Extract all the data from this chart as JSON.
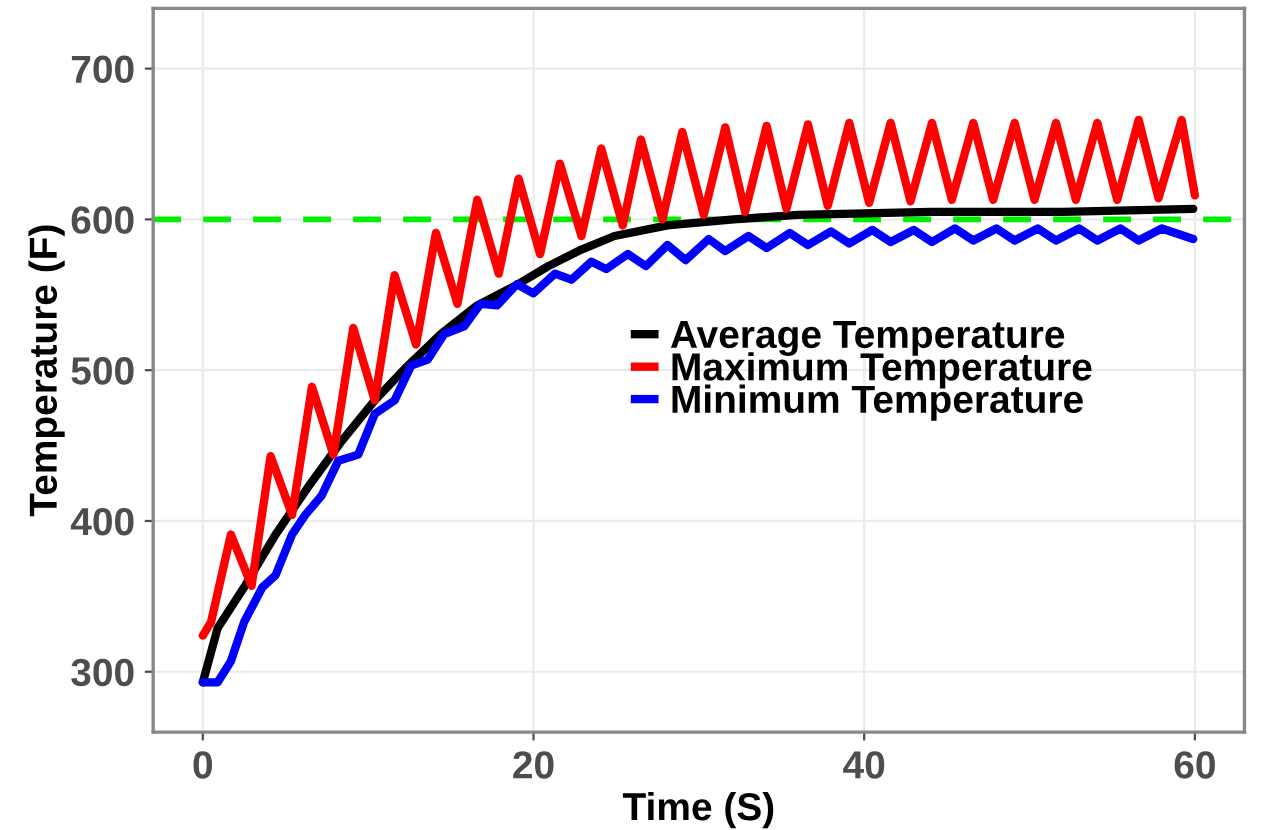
{
  "chart_data": {
    "type": "line",
    "xlabel": "Time (S)",
    "ylabel": "Temperature (F)",
    "xlim": [
      -3,
      63
    ],
    "ylim": [
      260,
      740
    ],
    "xticks": [
      0,
      20,
      40,
      60
    ],
    "yticks": [
      300,
      400,
      500,
      600,
      700
    ],
    "grid": true,
    "legend": "center right",
    "line_style": "solid",
    "ref_lines": [
      {
        "axis": "y",
        "value": 600,
        "label": null,
        "color": "#00ee00",
        "line_style": "dashed"
      }
    ],
    "series": [
      {
        "name": "Average Temperature",
        "color": "#000000",
        "x": [
          0,
          0.9,
          2.5,
          4.4,
          6.4,
          8.4,
          10.4,
          12.4,
          14.4,
          16.6,
          18.9,
          20.9,
          22.9,
          24.9,
          28.1,
          32.1,
          36,
          40,
          44,
          48,
          52,
          56,
          59.9
        ],
        "values": [
          293,
          329,
          356,
          391,
          423,
          453,
          480,
          503,
          524,
          543,
          556,
          569,
          580,
          589,
          596,
          600,
          603,
          604,
          605,
          605,
          605,
          606,
          607
        ]
      },
      {
        "name": "Maximum Temperature",
        "color": "#ff0000",
        "x": [
          0,
          0.5,
          1.7,
          2.95,
          4.1,
          5.4,
          6.6,
          7.9,
          9.1,
          10.4,
          11.6,
          12.9,
          14.1,
          15.4,
          16.6,
          17.9,
          19.1,
          20.4,
          21.6,
          22.9,
          24.1,
          25.4,
          26.5,
          27.8,
          29,
          30.3,
          31.6,
          32.8,
          34.1,
          35.3,
          36.6,
          37.8,
          39.1,
          40.3,
          41.6,
          42.8,
          44.1,
          45.3,
          46.6,
          47.8,
          49.1,
          50.3,
          51.6,
          52.8,
          54.1,
          55.3,
          56.6,
          57.8,
          59.2,
          60
        ],
        "values": [
          324,
          333,
          391,
          357,
          443,
          404,
          489,
          444,
          528,
          480,
          563,
          517,
          591,
          544,
          613,
          564,
          627,
          577,
          637,
          589,
          647,
          596,
          653,
          600,
          658,
          603,
          661,
          605,
          662,
          607,
          663,
          609,
          664,
          611,
          664,
          612,
          664,
          613,
          664,
          613,
          664,
          613,
          664,
          613,
          664,
          613,
          666,
          614,
          666,
          616
        ]
      },
      {
        "name": "Minimum Temperature",
        "color": "#0000ff",
        "x": [
          0,
          0.9,
          1.7,
          2.5,
          3.6,
          4.4,
          5.4,
          6.2,
          7.2,
          8.2,
          9.4,
          10.4,
          11.6,
          12.6,
          13.6,
          14.6,
          15.8,
          16.8,
          17.8,
          19,
          20,
          21.3,
          22.3,
          23.5,
          24.4,
          25.7,
          26.8,
          28.1,
          29.2,
          30.6,
          31.6,
          33,
          34.1,
          35.5,
          36.6,
          38,
          39.1,
          40.5,
          41.6,
          43,
          44.1,
          45.5,
          46.6,
          48,
          49.1,
          50.5,
          51.6,
          53,
          54.1,
          55.5,
          56.6,
          58,
          59.9
        ],
        "values": [
          293,
          293,
          307,
          333,
          356,
          364,
          391,
          404,
          417,
          440,
          444,
          471,
          480,
          503,
          507,
          524,
          529,
          544,
          543,
          557,
          551,
          564,
          560,
          572,
          567,
          577,
          569,
          583,
          573,
          587,
          579,
          589,
          581,
          591,
          583,
          592,
          584,
          593,
          585,
          593,
          585,
          594,
          586,
          594,
          586,
          594,
          586,
          594,
          586,
          594,
          586,
          594,
          587
        ]
      }
    ]
  }
}
